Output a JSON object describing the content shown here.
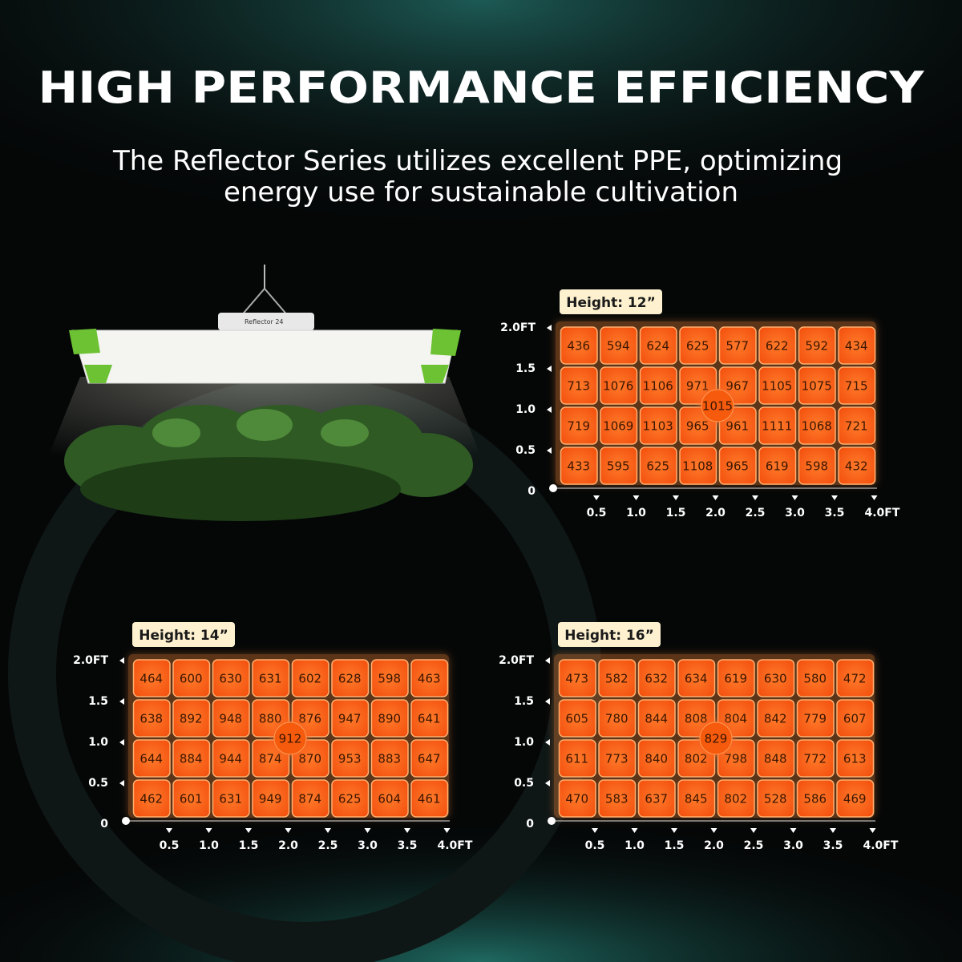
{
  "header": {
    "title": "HIGH PERFORMANCE EFFICIENCY",
    "subtitle": [
      "The Reflector Series utilizes excellent PPE, optimizing",
      "energy use for sustainable cultivation"
    ]
  },
  "product": {
    "label": "Reflector 24"
  },
  "y_axis_labels": [
    "2.0FT",
    "1.5",
    "1.0",
    "0.5",
    "0"
  ],
  "x_axis_labels": [
    "0.5",
    "1.0",
    "1.5",
    "2.0",
    "2.5",
    "3.0",
    "3.5",
    "4.0FT"
  ],
  "panels": [
    {
      "height": "Height: 12”",
      "center": 1015,
      "rows": [
        [
          436,
          594,
          624,
          625,
          577,
          622,
          592,
          434
        ],
        [
          713,
          1076,
          1106,
          971,
          967,
          1105,
          1075,
          715
        ],
        [
          719,
          1069,
          1103,
          965,
          961,
          1111,
          1068,
          721
        ],
        [
          433,
          595,
          625,
          1108,
          965,
          619,
          598,
          432
        ]
      ]
    },
    {
      "height": "Height: 14”",
      "center": 912,
      "rows": [
        [
          464,
          600,
          630,
          631,
          602,
          628,
          598,
          463
        ],
        [
          638,
          892,
          948,
          880,
          876,
          947,
          890,
          641
        ],
        [
          644,
          884,
          944,
          874,
          870,
          953,
          883,
          647
        ],
        [
          462,
          601,
          631,
          949,
          874,
          625,
          604,
          461
        ]
      ]
    },
    {
      "height": "Height: 16”",
      "center": 829,
      "rows": [
        [
          473,
          582,
          632,
          634,
          619,
          630,
          580,
          472
        ],
        [
          605,
          780,
          844,
          808,
          804,
          842,
          779,
          607
        ],
        [
          611,
          773,
          840,
          802,
          798,
          848,
          772,
          613
        ],
        [
          470,
          583,
          637,
          845,
          802,
          528,
          586,
          469
        ]
      ]
    }
  ]
}
